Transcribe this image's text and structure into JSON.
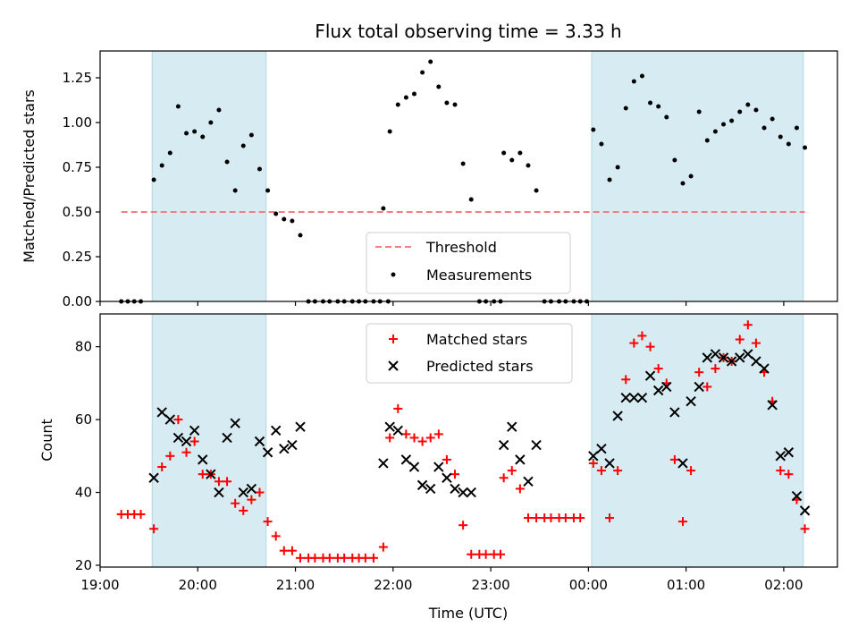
{
  "title": "Flux total observing time = 3.33 h",
  "xlabel": "Time (UTC)",
  "x_tick_labels": [
    "19:00",
    "20:00",
    "21:00",
    "22:00",
    "23:00",
    "00:00",
    "01:00",
    "02:00"
  ],
  "colors": {
    "threshold": "#f08080",
    "measurement": "#000000",
    "matched": "#ff0000",
    "predicted": "#000000",
    "shade": "#add8e6"
  },
  "chart_data": [
    {
      "type": "scatter",
      "title": "Flux total observing time = 3.33 h",
      "xlabel": "",
      "ylabel": "Matched/Predicted stars",
      "xlim": [
        "19:00",
        "02:33"
      ],
      "ylim": [
        0,
        1.4
      ],
      "y_ticks": [
        "0.00",
        "0.25",
        "0.50",
        "0.75",
        "1.00",
        "1.25"
      ],
      "shaded_intervals": [
        [
          "19:32",
          "20:42"
        ],
        [
          "00:02",
          "02:12"
        ]
      ],
      "threshold": {
        "name": "Threshold",
        "value": 0.5,
        "x_range": [
          "19:13",
          "02:13"
        ]
      },
      "legend": "lower-center",
      "series": [
        {
          "name": "Measurements",
          "points": [
            [
              "19:13",
              0
            ],
            [
              "19:17",
              0
            ],
            [
              "19:21",
              0
            ],
            [
              "19:25",
              0
            ],
            [
              "19:33",
              0.68
            ],
            [
              "19:38",
              0.76
            ],
            [
              "19:43",
              0.83
            ],
            [
              "19:48",
              1.09
            ],
            [
              "19:53",
              0.94
            ],
            [
              "19:58",
              0.95
            ],
            [
              "20:03",
              0.92
            ],
            [
              "20:08",
              1.0
            ],
            [
              "20:13",
              1.07
            ],
            [
              "20:18",
              0.78
            ],
            [
              "20:23",
              0.62
            ],
            [
              "20:28",
              0.87
            ],
            [
              "20:33",
              0.93
            ],
            [
              "20:38",
              0.74
            ],
            [
              "20:43",
              0.62
            ],
            [
              "20:48",
              0.49
            ],
            [
              "20:53",
              0.46
            ],
            [
              "20:58",
              0.45
            ],
            [
              "21:03",
              0.37
            ],
            [
              "21:08",
              0
            ],
            [
              "21:12",
              0
            ],
            [
              "21:17",
              0
            ],
            [
              "21:21",
              0
            ],
            [
              "21:26",
              0
            ],
            [
              "21:30",
              0
            ],
            [
              "21:35",
              0
            ],
            [
              "21:39",
              0
            ],
            [
              "21:43",
              0
            ],
            [
              "21:48",
              0
            ],
            [
              "21:52",
              0
            ],
            [
              "21:57",
              0
            ],
            [
              "21:54",
              0.52
            ],
            [
              "21:58",
              0.95
            ],
            [
              "22:03",
              1.1
            ],
            [
              "22:08",
              1.14
            ],
            [
              "22:13",
              1.16
            ],
            [
              "22:18",
              1.28
            ],
            [
              "22:23",
              1.34
            ],
            [
              "22:28",
              1.2
            ],
            [
              "22:33",
              1.11
            ],
            [
              "22:38",
              1.1
            ],
            [
              "22:43",
              0.77
            ],
            [
              "22:48",
              0.57
            ],
            [
              "22:53",
              0
            ],
            [
              "22:57",
              0
            ],
            [
              "23:02",
              0
            ],
            [
              "23:06",
              0
            ],
            [
              "23:08",
              0.83
            ],
            [
              "23:13",
              0.79
            ],
            [
              "23:18",
              0.83
            ],
            [
              "23:23",
              0.76
            ],
            [
              "23:28",
              0.62
            ],
            [
              "23:33",
              0
            ],
            [
              "23:37",
              0
            ],
            [
              "23:42",
              0
            ],
            [
              "23:46",
              0
            ],
            [
              "23:51",
              0
            ],
            [
              "23:55",
              0
            ],
            [
              "23:59",
              0
            ],
            [
              "00:03",
              0.96
            ],
            [
              "00:08",
              0.88
            ],
            [
              "00:13",
              0.68
            ],
            [
              "00:18",
              0.75
            ],
            [
              "00:23",
              1.08
            ],
            [
              "00:28",
              1.23
            ],
            [
              "00:33",
              1.26
            ],
            [
              "00:38",
              1.11
            ],
            [
              "00:43",
              1.09
            ],
            [
              "00:48",
              1.03
            ],
            [
              "00:53",
              0.79
            ],
            [
              "00:58",
              0.66
            ],
            [
              "01:03",
              0.7
            ],
            [
              "01:08",
              1.06
            ],
            [
              "01:13",
              0.9
            ],
            [
              "01:18",
              0.95
            ],
            [
              "01:23",
              0.99
            ],
            [
              "01:28",
              1.01
            ],
            [
              "01:33",
              1.06
            ],
            [
              "01:38",
              1.1
            ],
            [
              "01:43",
              1.07
            ],
            [
              "01:48",
              0.97
            ],
            [
              "01:53",
              1.02
            ],
            [
              "01:58",
              0.92
            ],
            [
              "02:03",
              0.88
            ],
            [
              "02:08",
              0.97
            ],
            [
              "02:13",
              0.86
            ]
          ]
        }
      ]
    },
    {
      "type": "scatter",
      "title": "",
      "xlabel": "Time (UTC)",
      "ylabel": "Count",
      "xlim": [
        "19:00",
        "02:33"
      ],
      "ylim": [
        19.5,
        89
      ],
      "y_ticks": [
        "20",
        "40",
        "60",
        "80"
      ],
      "shaded_intervals": [
        [
          "19:32",
          "20:42"
        ],
        [
          "00:02",
          "02:12"
        ]
      ],
      "legend": "top-center",
      "series": [
        {
          "name": "Matched stars",
          "marker": "plus",
          "points": [
            [
              "19:13",
              34
            ],
            [
              "19:17",
              34
            ],
            [
              "19:21",
              34
            ],
            [
              "19:25",
              34
            ],
            [
              "19:33",
              30
            ],
            [
              "19:38",
              47
            ],
            [
              "19:43",
              50
            ],
            [
              "19:48",
              60
            ],
            [
              "19:53",
              51
            ],
            [
              "19:58",
              54
            ],
            [
              "20:03",
              45
            ],
            [
              "20:08",
              45
            ],
            [
              "20:13",
              43
            ],
            [
              "20:18",
              43
            ],
            [
              "20:23",
              37
            ],
            [
              "20:28",
              35
            ],
            [
              "20:33",
              38
            ],
            [
              "20:38",
              40
            ],
            [
              "20:43",
              32
            ],
            [
              "20:48",
              28
            ],
            [
              "20:53",
              24
            ],
            [
              "20:58",
              24
            ],
            [
              "21:03",
              22
            ],
            [
              "21:08",
              22
            ],
            [
              "21:12",
              22
            ],
            [
              "21:17",
              22
            ],
            [
              "21:21",
              22
            ],
            [
              "21:26",
              22
            ],
            [
              "21:30",
              22
            ],
            [
              "21:35",
              22
            ],
            [
              "21:39",
              22
            ],
            [
              "21:43",
              22
            ],
            [
              "21:48",
              22
            ],
            [
              "21:54",
              25
            ],
            [
              "21:58",
              55
            ],
            [
              "22:03",
              63
            ],
            [
              "22:08",
              56
            ],
            [
              "22:13",
              55
            ],
            [
              "22:18",
              54
            ],
            [
              "22:23",
              55
            ],
            [
              "22:28",
              56
            ],
            [
              "22:33",
              49
            ],
            [
              "22:38",
              45
            ],
            [
              "22:43",
              31
            ],
            [
              "22:48",
              23
            ],
            [
              "22:53",
              23
            ],
            [
              "22:57",
              23
            ],
            [
              "23:02",
              23
            ],
            [
              "23:06",
              23
            ],
            [
              "23:08",
              44
            ],
            [
              "23:13",
              46
            ],
            [
              "23:18",
              41
            ],
            [
              "23:23",
              33
            ],
            [
              "23:28",
              33
            ],
            [
              "23:33",
              33
            ],
            [
              "23:37",
              33
            ],
            [
              "23:42",
              33
            ],
            [
              "23:46",
              33
            ],
            [
              "23:51",
              33
            ],
            [
              "23:55",
              33
            ],
            [
              "00:03",
              48
            ],
            [
              "00:08",
              46
            ],
            [
              "00:13",
              33
            ],
            [
              "00:18",
              46
            ],
            [
              "00:23",
              71
            ],
            [
              "00:28",
              81
            ],
            [
              "00:33",
              83
            ],
            [
              "00:38",
              80
            ],
            [
              "00:43",
              74
            ],
            [
              "00:48",
              70
            ],
            [
              "00:53",
              49
            ],
            [
              "00:58",
              32
            ],
            [
              "01:03",
              46
            ],
            [
              "01:08",
              73
            ],
            [
              "01:13",
              69
            ],
            [
              "01:18",
              74
            ],
            [
              "01:23",
              77
            ],
            [
              "01:28",
              76
            ],
            [
              "01:33",
              82
            ],
            [
              "01:38",
              86
            ],
            [
              "01:43",
              81
            ],
            [
              "01:48",
              73
            ],
            [
              "01:53",
              65
            ],
            [
              "01:58",
              46
            ],
            [
              "02:03",
              45
            ],
            [
              "02:08",
              38
            ],
            [
              "02:13",
              30
            ]
          ]
        },
        {
          "name": "Predicted stars",
          "marker": "x",
          "points": [
            [
              "19:33",
              44
            ],
            [
              "19:38",
              62
            ],
            [
              "19:43",
              60
            ],
            [
              "19:48",
              55
            ],
            [
              "19:53",
              54
            ],
            [
              "19:58",
              57
            ],
            [
              "20:03",
              49
            ],
            [
              "20:08",
              45
            ],
            [
              "20:13",
              40
            ],
            [
              "20:18",
              55
            ],
            [
              "20:23",
              59
            ],
            [
              "20:28",
              40
            ],
            [
              "20:33",
              41
            ],
            [
              "20:38",
              54
            ],
            [
              "20:43",
              51
            ],
            [
              "20:48",
              57
            ],
            [
              "20:53",
              52
            ],
            [
              "20:58",
              53
            ],
            [
              "21:03",
              58
            ],
            [
              "21:54",
              48
            ],
            [
              "21:58",
              58
            ],
            [
              "22:03",
              57
            ],
            [
              "22:08",
              49
            ],
            [
              "22:13",
              47
            ],
            [
              "22:18",
              42
            ],
            [
              "22:23",
              41
            ],
            [
              "22:28",
              47
            ],
            [
              "22:33",
              44
            ],
            [
              "22:38",
              41
            ],
            [
              "22:43",
              40
            ],
            [
              "22:48",
              40
            ],
            [
              "23:08",
              53
            ],
            [
              "23:13",
              58
            ],
            [
              "23:18",
              49
            ],
            [
              "23:23",
              43
            ],
            [
              "23:28",
              53
            ],
            [
              "00:03",
              50
            ],
            [
              "00:08",
              52
            ],
            [
              "00:13",
              48
            ],
            [
              "00:18",
              61
            ],
            [
              "00:23",
              66
            ],
            [
              "00:28",
              66
            ],
            [
              "00:33",
              66
            ],
            [
              "00:38",
              72
            ],
            [
              "00:43",
              68
            ],
            [
              "00:48",
              69
            ],
            [
              "00:53",
              62
            ],
            [
              "00:58",
              48
            ],
            [
              "01:03",
              65
            ],
            [
              "01:08",
              69
            ],
            [
              "01:13",
              77
            ],
            [
              "01:18",
              78
            ],
            [
              "01:23",
              77
            ],
            [
              "01:28",
              76
            ],
            [
              "01:33",
              77
            ],
            [
              "01:38",
              78
            ],
            [
              "01:43",
              76
            ],
            [
              "01:48",
              74
            ],
            [
              "01:53",
              64
            ],
            [
              "01:58",
              50
            ],
            [
              "02:03",
              51
            ],
            [
              "02:08",
              39
            ],
            [
              "02:13",
              35
            ]
          ]
        }
      ]
    }
  ]
}
